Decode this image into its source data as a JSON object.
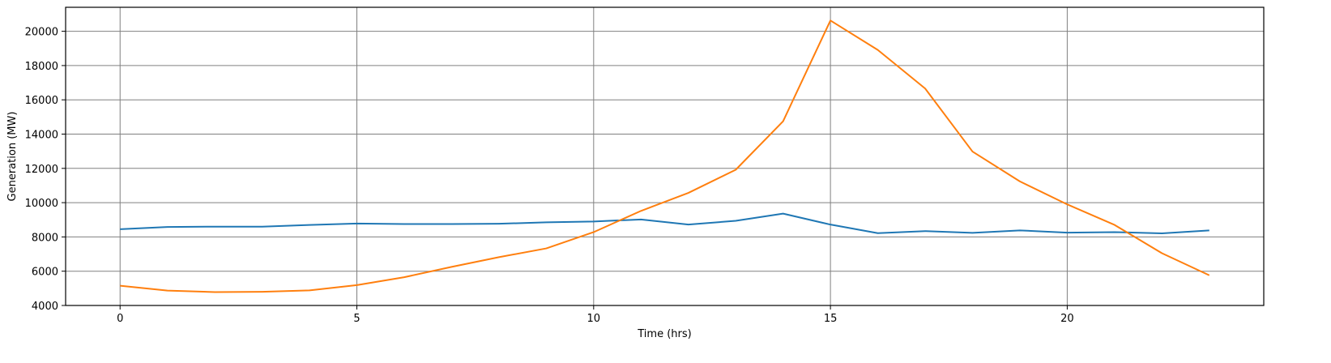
{
  "chart_data": {
    "type": "line",
    "title": "",
    "xlabel": "Time (hrs)",
    "ylabel": "Generation (MW)",
    "xlim": [
      -1.15,
      24.15
    ],
    "ylim": [
      4000,
      21400
    ],
    "xticks": [
      0,
      5,
      10,
      15,
      20
    ],
    "yticks": [
      4000,
      6000,
      8000,
      10000,
      12000,
      14000,
      16000,
      18000,
      20000
    ],
    "grid": true,
    "legend": "none",
    "x": [
      0,
      1,
      2,
      3,
      4,
      5,
      6,
      7,
      8,
      9,
      10,
      11,
      12,
      13,
      14,
      15,
      16,
      17,
      18,
      19,
      20,
      21,
      22,
      23
    ],
    "series": [
      {
        "color": "#1f77b4",
        "values": [
          8450,
          8580,
          8600,
          8600,
          8700,
          8780,
          8750,
          8750,
          8770,
          8850,
          8900,
          9020,
          8720,
          8940,
          9360,
          8720,
          8220,
          8340,
          8240,
          8380,
          8250,
          8280,
          8210,
          8380
        ]
      },
      {
        "color": "#ff7f0e",
        "values": [
          5150,
          4870,
          4780,
          4800,
          4880,
          5190,
          5650,
          6250,
          6820,
          7330,
          8280,
          9520,
          10570,
          11920,
          14750,
          20630,
          18910,
          16660,
          12980,
          11240,
          9900,
          8700,
          7050,
          5760
        ]
      }
    ]
  }
}
